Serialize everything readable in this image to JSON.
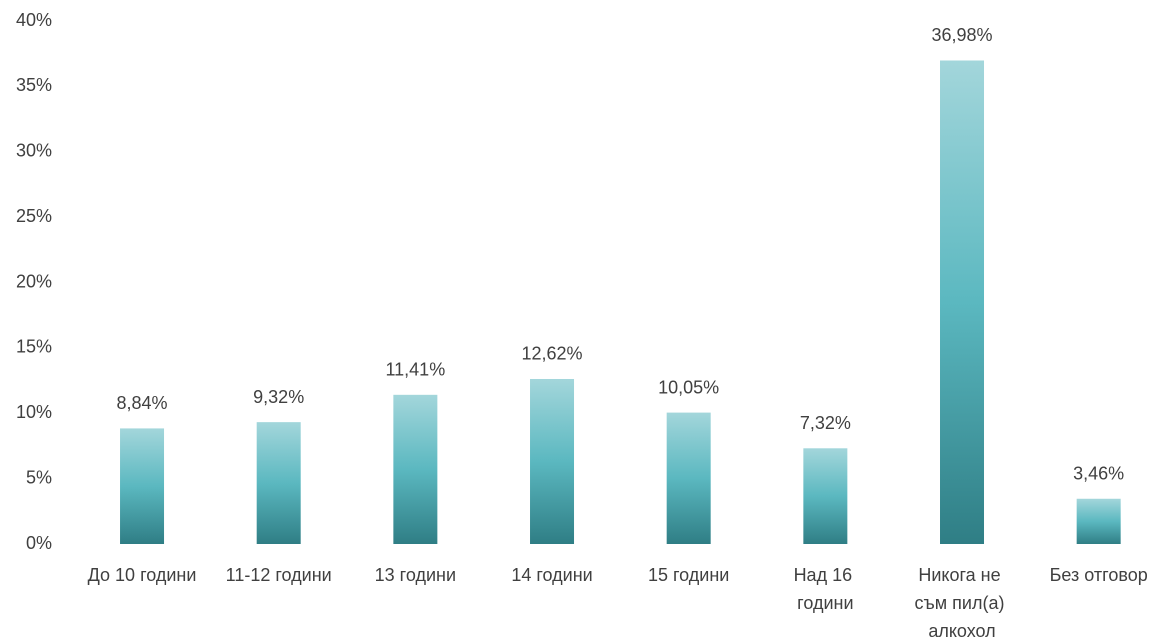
{
  "chart_data": {
    "type": "bar",
    "categories": [
      "До 10 години",
      "11-12 години",
      "13 години",
      "14 години",
      "15 години",
      "Над 16 години",
      "Никога не съм пил(а) алкохол",
      "Без отговор"
    ],
    "values": [
      8.84,
      9.32,
      11.41,
      12.62,
      10.05,
      7.32,
      36.98,
      3.46
    ],
    "value_labels": [
      "8,84%",
      "9,32%",
      "11,41%",
      "12,62%",
      "10,05%",
      "7,32%",
      "36,98%",
      "3,46%"
    ],
    "color": "#5bb8c0",
    "ylim": [
      0,
      40
    ],
    "yticks": [
      {
        "value": 0,
        "label": "0%"
      },
      {
        "value": 5,
        "label": "5%"
      },
      {
        "value": 10,
        "label": "10%"
      },
      {
        "value": 15,
        "label": "15%"
      },
      {
        "value": 20,
        "label": "20%"
      },
      {
        "value": 25,
        "label": "25%"
      },
      {
        "value": 30,
        "label": "30%"
      },
      {
        "value": 35,
        "label": "35%"
      },
      {
        "value": 40,
        "label": "40%"
      }
    ],
    "grid": false
  }
}
